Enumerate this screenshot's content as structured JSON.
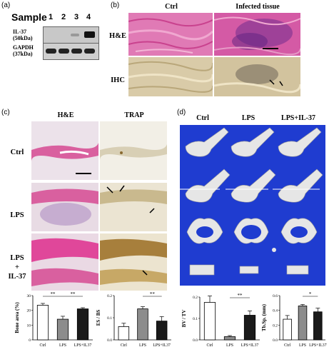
{
  "panels": {
    "a": {
      "label": "(a)",
      "sample_title": "Sample",
      "lanes": [
        "1",
        "2",
        "3",
        "4"
      ],
      "rows": [
        {
          "protein": "IL-37",
          "size": "(50kDa)"
        },
        {
          "protein": "GAPDH",
          "size": "(37kDa)"
        }
      ]
    },
    "b": {
      "label": "(b)",
      "columns": [
        "Ctrl",
        "Infected tissue"
      ],
      "rows": [
        "H&E",
        "IHC"
      ]
    },
    "c": {
      "label": "(c)",
      "columns": [
        "H&E",
        "TRAP"
      ],
      "rows": [
        "Ctrl",
        "LPS",
        "LPS\n+\nIL-37"
      ]
    },
    "d": {
      "label": "(d)",
      "columns": [
        "Ctrl",
        "LPS",
        "LPS+IL-37"
      ]
    }
  },
  "colors": {
    "bar_ctrl": "#ffffff",
    "bar_lps": "#8c8c8c",
    "bar_il37": "#1a1a1a",
    "he_pink": "#d9609f",
    "trap_tan": "#d8cfb5",
    "microct_bg": "#1f3cd0",
    "microct_bone": "#e6e6e6"
  },
  "chart_data": [
    {
      "type": "bar",
      "panel": "c",
      "ylabel": "Bone area (%)",
      "categories": [
        "Ctrl",
        "LPS",
        "LPS+IL37"
      ],
      "values": [
        23.5,
        14,
        21
      ],
      "errors": [
        1.2,
        2.0,
        0.8
      ],
      "significance": [
        {
          "from": "Ctrl",
          "to": "LPS",
          "label": "**"
        },
        {
          "from": "LPS",
          "to": "LPS+IL37",
          "label": "**"
        }
      ]
    },
    {
      "type": "bar",
      "panel": "c",
      "ylabel": "ES / BS",
      "categories": [
        "Ctrl",
        "LPS",
        "LPS+IL37"
      ],
      "values": [
        0.06,
        0.14,
        0.085
      ],
      "errors": [
        0.015,
        0.01,
        0.02
      ],
      "significance": [
        {
          "from": "LPS",
          "to": "LPS+IL37",
          "label": "**"
        }
      ]
    },
    {
      "type": "bar",
      "panel": "d",
      "ylabel": "BV / TV",
      "categories": [
        "Ctrl",
        "LPS",
        "LPS+IL37"
      ],
      "values": [
        0.175,
        0.015,
        0.115
      ],
      "errors": [
        0.03,
        0.005,
        0.02
      ],
      "significance": [
        {
          "from": "LPS",
          "to": "LPS+IL37",
          "label": "**"
        }
      ]
    },
    {
      "type": "bar",
      "panel": "d",
      "ylabel": "Tb.Sp. (mm)",
      "categories": [
        "Ctrl",
        "LPS",
        "LPS+IL37"
      ],
      "values": [
        0.28,
        0.46,
        0.38
      ],
      "errors": [
        0.05,
        0.02,
        0.05
      ],
      "significance": [
        {
          "from": "LPS",
          "to": "LPS+IL37",
          "label": "*"
        }
      ]
    }
  ]
}
